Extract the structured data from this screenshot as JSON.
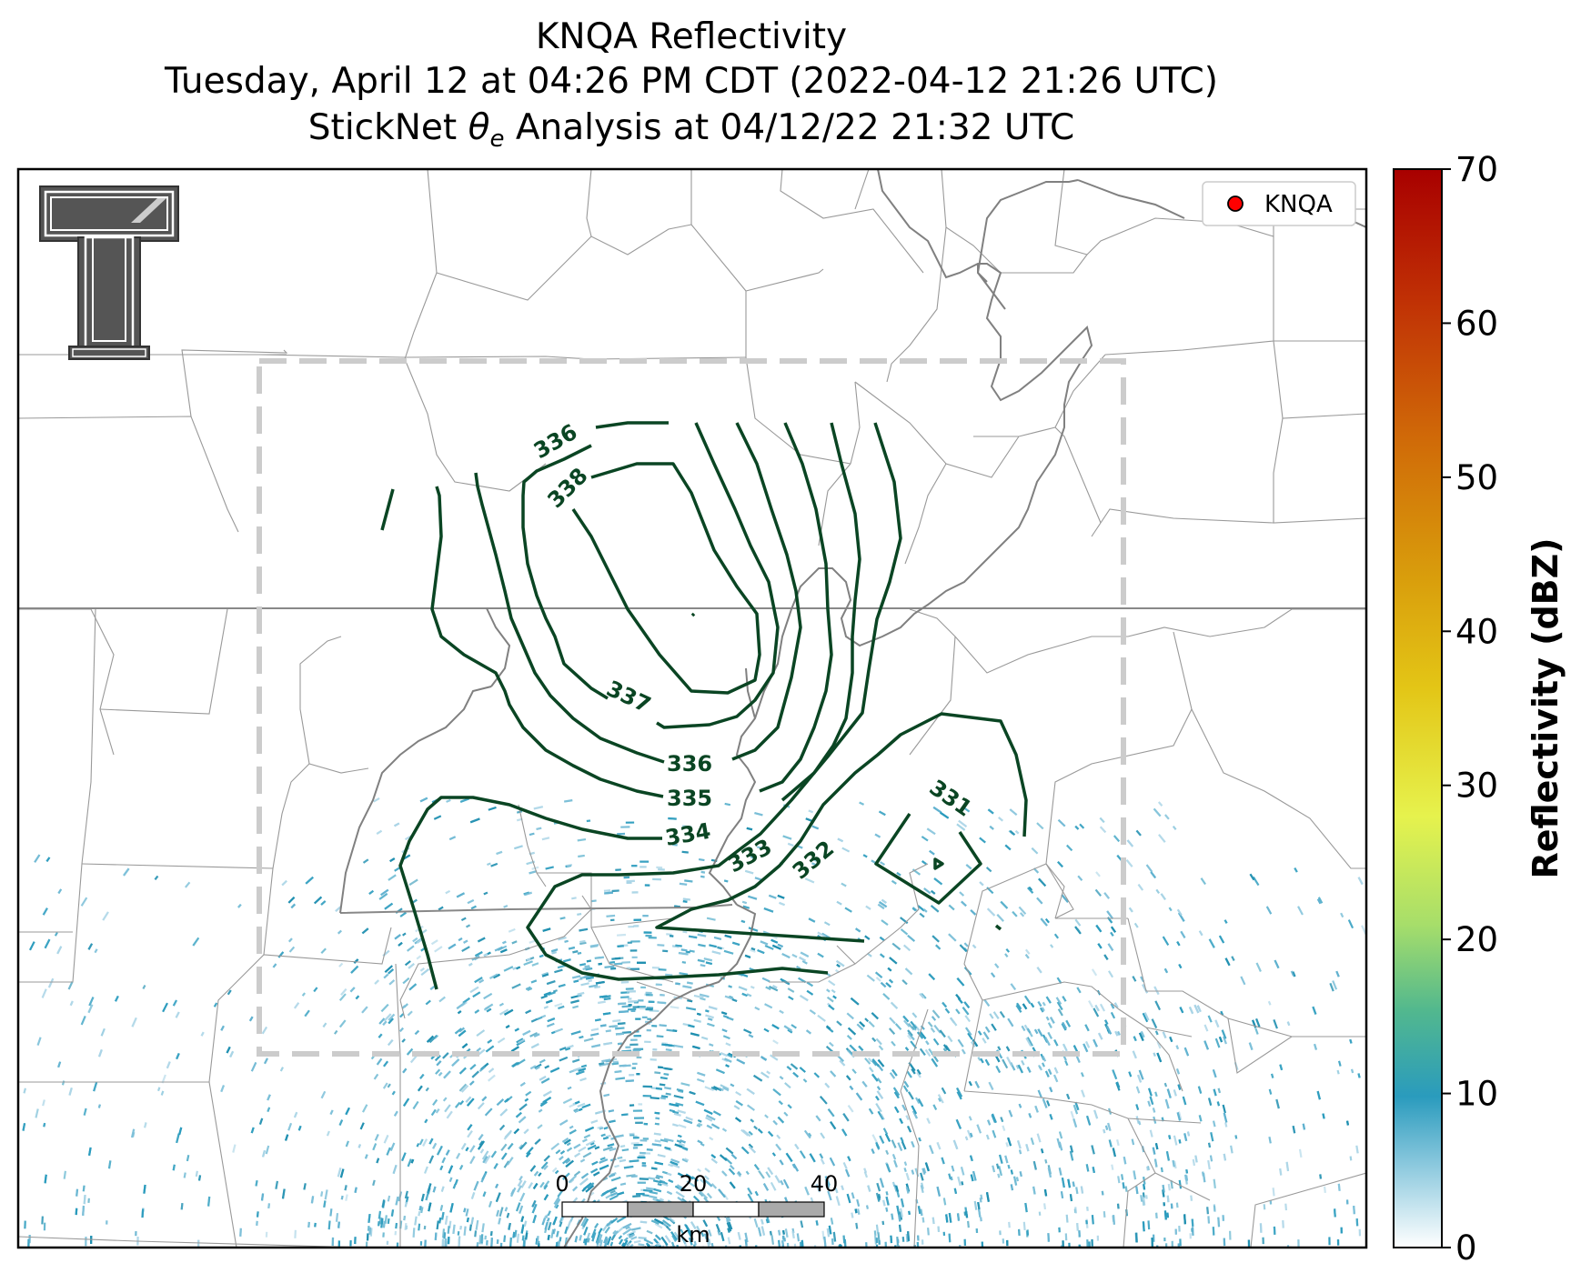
{
  "title": {
    "line1": "KNQA Reflectivity",
    "line2": "Tuesday, April 12 at 04:26 PM CDT (2022-04-12 21:26 UTC)",
    "line3_prefix": "StickNet ",
    "line3_theta": "θ",
    "line3_sub": "e",
    "line3_suffix": " Analysis at 04/12/22 21:32 UTC"
  },
  "legend": {
    "label": "KNQA",
    "marker_color": "#ff0000"
  },
  "colorbar": {
    "label": "Reflectivity (dBZ)",
    "ticks": [
      "0",
      "10",
      "20",
      "30",
      "40",
      "50",
      "60",
      "70"
    ],
    "min": 0,
    "max": 70
  },
  "scale_bar": {
    "ticks": [
      "0",
      "20",
      "40"
    ],
    "unit": "km"
  },
  "contours": {
    "color": "#0a4523",
    "labels": [
      "336",
      "338",
      "337",
      "336",
      "335",
      "334",
      "333",
      "332",
      "331"
    ]
  },
  "logo": {
    "name": "Texas Tech Double T"
  },
  "colors": {
    "contour": "#0a4523",
    "analysis_box": "#cccccc",
    "reflectivity_light": "#2a9bbd",
    "boundary": "#888888"
  }
}
